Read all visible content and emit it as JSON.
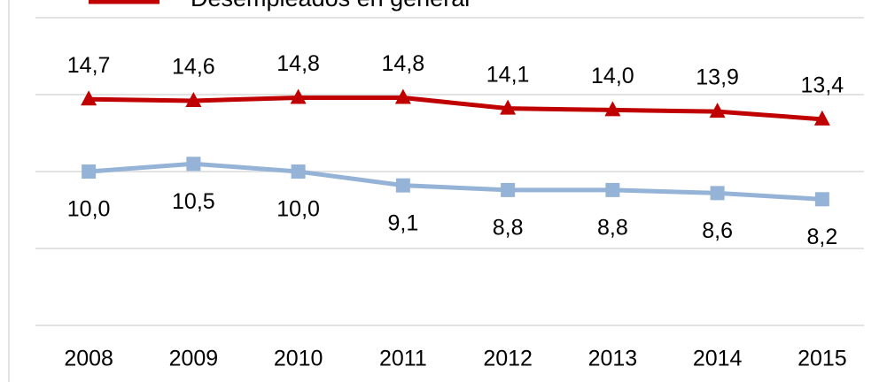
{
  "chart_data": {
    "type": "line",
    "categories": [
      "2008",
      "2009",
      "2010",
      "2011",
      "2012",
      "2013",
      "2014",
      "2015"
    ],
    "series": [
      {
        "name": "Desempleados en general",
        "color": "#c00000",
        "marker": "triangle",
        "values": [
          14.7,
          14.6,
          14.8,
          14.8,
          14.1,
          14.0,
          13.9,
          13.4
        ],
        "value_labels": [
          "14,7",
          "14,6",
          "14,8",
          "14,8",
          "14,1",
          "14,0",
          "13,9",
          "13,4"
        ]
      },
      {
        "color": "#95b3d7",
        "marker": "square",
        "values": [
          10.0,
          10.5,
          10.0,
          9.1,
          8.8,
          8.8,
          8.6,
          8.2
        ],
        "value_labels": [
          "10,0",
          "10,5",
          "10,0",
          "9,1",
          "8,8",
          "8,8",
          "8,6",
          "8,2"
        ]
      }
    ],
    "ylim": [
      0,
      20
    ],
    "yticks": [
      0,
      5,
      10,
      15,
      20
    ],
    "grid": true
  }
}
